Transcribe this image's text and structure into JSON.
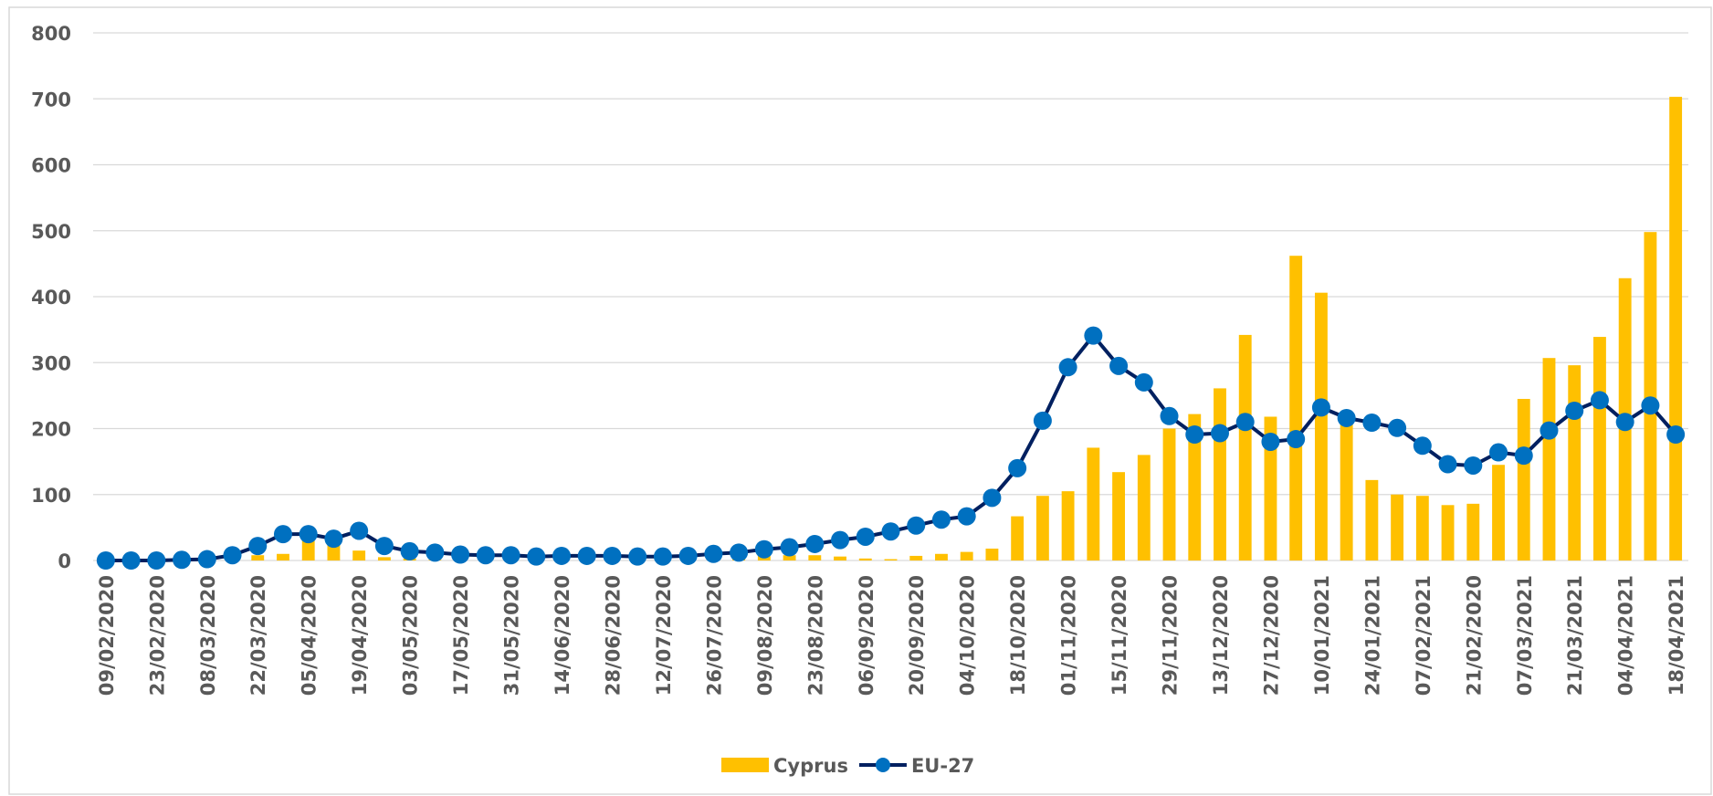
{
  "chart_data": {
    "type": "bar-line",
    "categories": [
      "09/02/2020",
      null,
      "23/02/2020",
      null,
      "08/03/2020",
      null,
      "22/03/2020",
      null,
      "05/04/2020",
      null,
      "19/04/2020",
      null,
      "03/05/2020",
      null,
      "17/05/2020",
      null,
      "31/05/2020",
      null,
      "14/06/2020",
      null,
      "28/06/2020",
      null,
      "12/07/2020",
      null,
      "26/07/2020",
      null,
      "09/08/2020",
      null,
      "23/08/2020",
      null,
      "06/09/2020",
      null,
      "20/09/2020",
      null,
      "04/10/2020",
      null,
      "18/10/2020",
      null,
      "01/11/2020",
      null,
      "15/11/2020",
      null,
      "29/11/2020",
      null,
      "13/12/2020",
      null,
      "27/12/2020",
      null,
      "10/01/2021",
      null,
      "24/01/2021",
      null,
      "07/02/2021",
      null,
      "21/02/2020",
      null,
      "07/03/2021",
      null,
      "21/03/2021",
      null,
      "04/04/2021",
      null,
      "18/04/2021"
    ],
    "series": [
      {
        "name": "Cyprus",
        "type": "bar",
        "color": "#FFC000",
        "values": [
          0,
          0,
          0,
          0,
          0,
          2,
          8,
          10,
          30,
          25,
          15,
          5,
          3,
          1,
          0,
          0,
          0,
          0,
          0,
          0,
          0,
          0,
          0,
          1,
          2,
          3,
          10,
          8,
          8,
          6,
          3,
          2,
          7,
          10,
          13,
          18,
          67,
          98,
          105,
          171,
          134,
          160,
          200,
          222,
          261,
          342,
          218,
          462,
          406,
          210,
          122,
          100,
          98,
          84,
          86,
          145,
          245,
          307,
          296,
          339,
          428,
          498,
          703
        ]
      },
      {
        "name": "EU-27",
        "type": "line",
        "color": "#002060",
        "marker_color": "#0070C0",
        "values": [
          0,
          0,
          0,
          1,
          2,
          8,
          22,
          40,
          40,
          33,
          45,
          22,
          14,
          12,
          9,
          8,
          8,
          6,
          7,
          7,
          7,
          6,
          6,
          7,
          10,
          12,
          17,
          20,
          25,
          31,
          36,
          44,
          53,
          62,
          67,
          95,
          140,
          212,
          293,
          341,
          295,
          270,
          219,
          191,
          193,
          210,
          180,
          184,
          232,
          216,
          209,
          201,
          174,
          146,
          144,
          164,
          159,
          197,
          227,
          243,
          210,
          235,
          191
        ]
      }
    ],
    "ylim": [
      0,
      800
    ],
    "yticks": [
      0,
      100,
      200,
      300,
      400,
      500,
      600,
      700,
      800
    ],
    "grid": true,
    "legend": "bottom"
  }
}
